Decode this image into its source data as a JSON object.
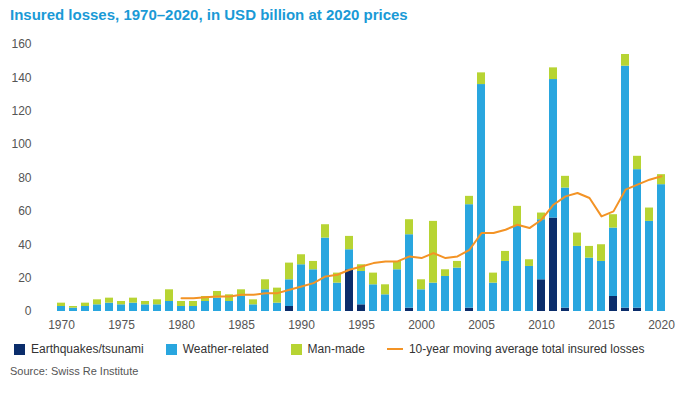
{
  "chart_data": {
    "type": "bar",
    "title": "Insured losses, 1970–2020, in USD billion at 2020 prices",
    "source": "Source: Swiss Re Institute",
    "stacked": true,
    "grid": false,
    "legend": "bottom",
    "categories": [
      "1970",
      null,
      null,
      null,
      null,
      "1975",
      null,
      null,
      null,
      null,
      "1980",
      null,
      null,
      null,
      null,
      "1985",
      null,
      null,
      null,
      null,
      "1990",
      null,
      null,
      null,
      null,
      "1995",
      null,
      null,
      null,
      null,
      "2000",
      null,
      null,
      null,
      null,
      "2005",
      null,
      null,
      null,
      null,
      "2010",
      null,
      null,
      null,
      null,
      "2015",
      null,
      null,
      null,
      null,
      "2020"
    ],
    "ylim": [
      0,
      160
    ],
    "yticks": [
      0,
      20,
      40,
      60,
      80,
      100,
      120,
      140,
      160
    ],
    "series": [
      {
        "name": "Earthquakes/tsunami",
        "type": "bar",
        "color": "#0b2d6b",
        "values": [
          0,
          0,
          0,
          0,
          0,
          0,
          0,
          0,
          0,
          0,
          0,
          0,
          0,
          0,
          0,
          0,
          0,
          0,
          0,
          3,
          0,
          0,
          0,
          0,
          25,
          4,
          0,
          0,
          0,
          2,
          0,
          0,
          0,
          0,
          2,
          0,
          0,
          0,
          0,
          0,
          19,
          56,
          2,
          0,
          0,
          0,
          9,
          2,
          2,
          0,
          0
        ]
      },
      {
        "name": "Weather-related",
        "type": "bar",
        "color": "#29a6df",
        "values": [
          3,
          2,
          3,
          4,
          5,
          4,
          5,
          4,
          4,
          6,
          3,
          3,
          6,
          8,
          6,
          9,
          4,
          13,
          5,
          16,
          28,
          25,
          44,
          17,
          12,
          20,
          16,
          10,
          25,
          44,
          13,
          17,
          21,
          26,
          62,
          136,
          17,
          30,
          51,
          27,
          36,
          83,
          72,
          39,
          32,
          30,
          41,
          145,
          83,
          54,
          76
        ]
      },
      {
        "name": "Man-made",
        "type": "bar",
        "color": "#b7d433",
        "values": [
          2,
          1,
          2,
          3,
          3,
          2,
          3,
          2,
          3,
          7,
          3,
          3,
          3,
          4,
          4,
          4,
          3,
          6,
          9,
          10,
          6,
          5,
          8,
          6,
          8,
          4,
          7,
          6,
          5,
          9,
          6,
          37,
          4,
          4,
          5,
          7,
          6,
          6,
          12,
          4,
          4,
          7,
          7,
          8,
          7,
          10,
          8,
          7,
          8,
          8,
          6
        ]
      },
      {
        "name": "10-year moving average total insured losses",
        "type": "line",
        "color": "#f39325",
        "values": [
          null,
          null,
          null,
          null,
          null,
          null,
          null,
          null,
          null,
          null,
          8,
          8,
          8.5,
          9,
          9,
          10,
          10,
          11,
          11,
          13,
          15,
          17,
          21,
          22,
          25,
          27,
          29,
          30,
          30,
          33,
          32,
          35,
          32,
          33,
          37,
          47,
          47,
          49,
          52,
          50,
          55,
          64,
          69,
          71,
          68,
          57,
          60,
          73,
          76,
          79,
          81
        ]
      }
    ]
  }
}
